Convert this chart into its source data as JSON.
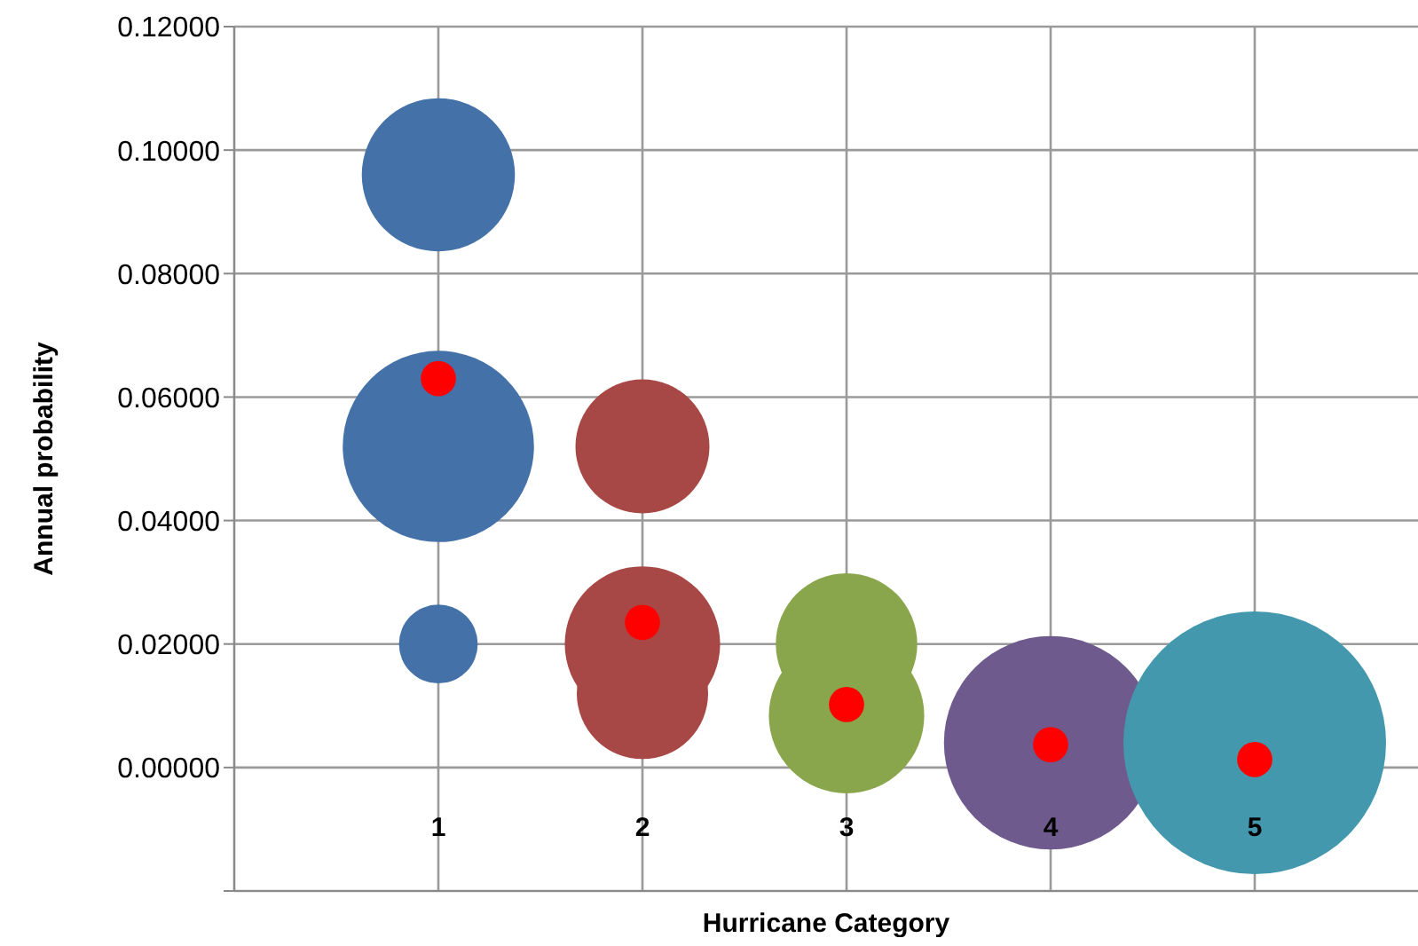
{
  "chart_data": {
    "type": "bubble",
    "xlabel": "Hurricane Category",
    "ylabel": "Annual probability",
    "xlim": [
      0,
      5.8
    ],
    "xticks": [
      {
        "value": 0,
        "label": null
      },
      1,
      2,
      3,
      4,
      5
    ],
    "ylim": [
      -0.02,
      0.12
    ],
    "yticks": [
      {
        "value": -0.02,
        "label": null
      },
      {
        "value": 0,
        "label": "0.00000"
      },
      {
        "value": 0.02,
        "label": "0.02000"
      },
      {
        "value": 0.04,
        "label": "0.04000"
      },
      {
        "value": 0.06,
        "label": "0.06000"
      },
      {
        "value": 0.08,
        "label": "0.08000"
      },
      {
        "value": 0.1,
        "label": "0.10000"
      },
      {
        "value": 0.12,
        "label": "0.12000"
      }
    ],
    "grid": true,
    "series": [
      {
        "color": "#4472a8",
        "x": [
          1,
          1,
          1
        ],
        "values": [
          0.096,
          0.052,
          0.02
        ],
        "sizes": [
          0.34,
          0.53,
          0.09
        ]
      },
      {
        "color": "#a84846",
        "x": [
          2,
          2,
          2
        ],
        "values": [
          0.052,
          0.02,
          0.012
        ],
        "sizes": [
          0.26,
          0.35,
          0.25
        ]
      },
      {
        "color": "#8aa64c",
        "x": [
          3,
          3
        ],
        "values": [
          0.02,
          0.0084
        ],
        "sizes": [
          0.29,
          0.35
        ]
      },
      {
        "color": "#6f5a8e",
        "x": [
          4
        ],
        "values": [
          0.004
        ],
        "sizes": [
          0.66
        ]
      },
      {
        "color": "#4398ae",
        "x": [
          5
        ],
        "values": [
          0.004
        ],
        "sizes": [
          1
        ]
      },
      {
        "color": "#ff0000",
        "x": [
          1,
          2,
          3,
          4,
          5
        ],
        "values": [
          0.063,
          0.0235,
          0.0102,
          0.0037,
          0.0013
        ],
        "sizes": [
          0.018,
          0.018,
          0.018,
          0.018,
          0.018
        ]
      }
    ]
  }
}
